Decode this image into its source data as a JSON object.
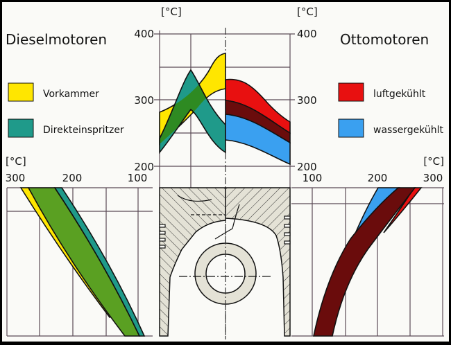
{
  "left": {
    "title": "Dieselmotoren",
    "legend": [
      {
        "label": "Vorkammer",
        "color": "#ffe600"
      },
      {
        "label": "Direkteinspritzer",
        "color": "#1f9a8a"
      }
    ],
    "overlap_color": "#4a9a22"
  },
  "right": {
    "title": "Ottomotoren",
    "legend": [
      {
        "label": "luftgekühlt",
        "color": "#e81010"
      },
      {
        "label": "wassergekühlt",
        "color": "#3aa0f0"
      }
    ],
    "overlap_color": "#6a0c0c"
  },
  "top_axes": {
    "unit": "[°C]",
    "ticks": [
      "400",
      "300",
      "200"
    ]
  },
  "bottom_left_axis": {
    "unit": "[°C]",
    "ticks": [
      "300",
      "200",
      "100"
    ]
  },
  "bottom_right_axis": {
    "unit": "[°C]",
    "ticks": [
      "100",
      "200",
      "300"
    ]
  }
}
